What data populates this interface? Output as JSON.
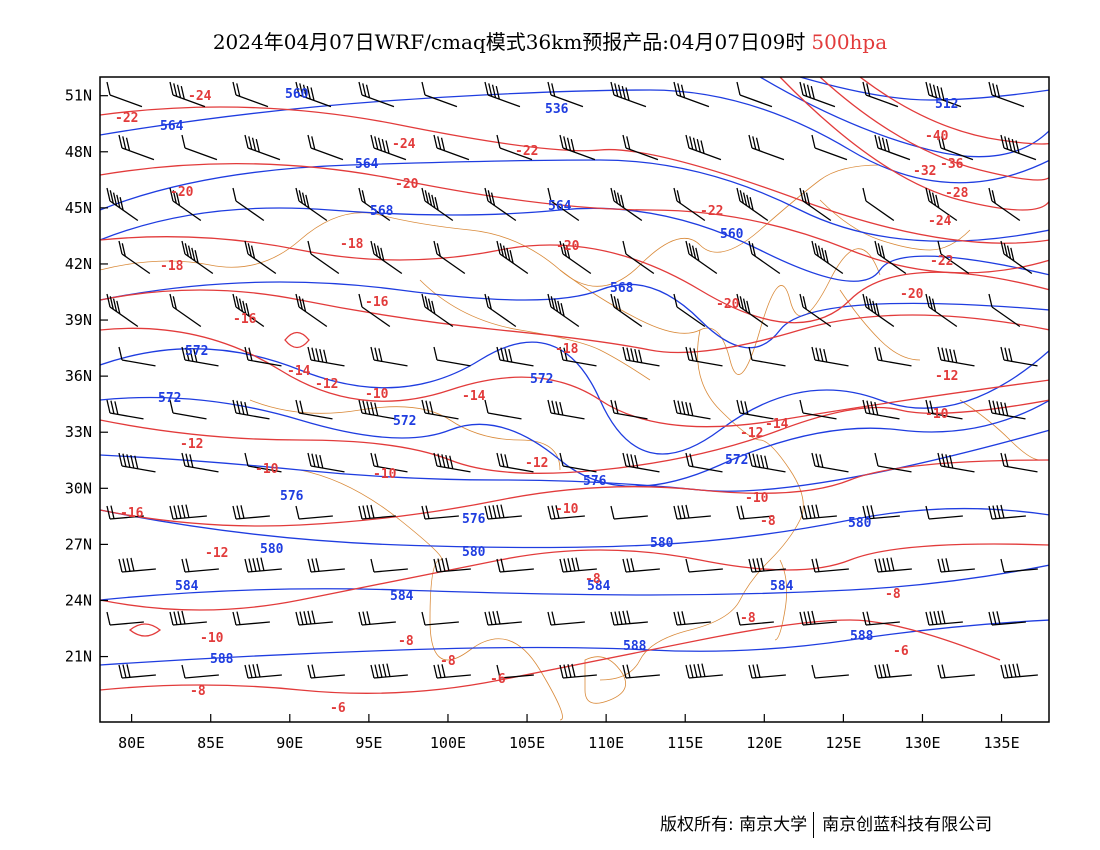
{
  "title": {
    "main": "2024年04月07日WRF/cmaq模式36km预报产品:04月07日09时",
    "level": "500hpa"
  },
  "colors": {
    "height_contour": "#1f3de0",
    "temperature_contour": "#e23b3b",
    "coastline_border": "#d98a3a",
    "wind_barb": "#000000",
    "frame": "#000000"
  },
  "axes": {
    "x_ticks": [
      "80E",
      "85E",
      "90E",
      "95E",
      "100E",
      "105E",
      "110E",
      "115E",
      "120E",
      "125E",
      "130E",
      "135E"
    ],
    "y_ticks": [
      "51N",
      "48N",
      "45N",
      "42N",
      "39N",
      "36N",
      "33N",
      "30N",
      "27N",
      "24N",
      "21N"
    ],
    "lon_range": [
      78,
      138
    ],
    "lat_range": [
      17.5,
      52
    ]
  },
  "height_labels": [
    "512",
    "536",
    "560",
    "564",
    "568",
    "572",
    "576",
    "580",
    "584",
    "588"
  ],
  "temperature_labels": [
    "-40",
    "-36",
    "-32",
    "-28",
    "-24",
    "-22",
    "-20",
    "-18",
    "-16",
    "-14",
    "-12",
    "-10",
    "-8",
    "-6"
  ],
  "footer": {
    "copyright": "版权所有: 南京大学",
    "company": "南京创蓝科技有限公司"
  }
}
